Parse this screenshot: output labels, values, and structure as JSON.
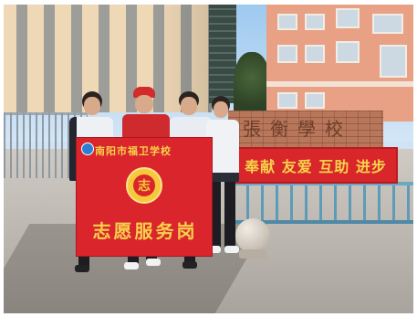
{
  "photo": {
    "flag": {
      "school_name": "南阳市福卫学校",
      "title": "志愿服务岗",
      "logo_char": "志"
    },
    "banner": {
      "text": "奉献 友爱 互助 进步"
    },
    "wall_sign": {
      "text": "張衡學校"
    }
  }
}
